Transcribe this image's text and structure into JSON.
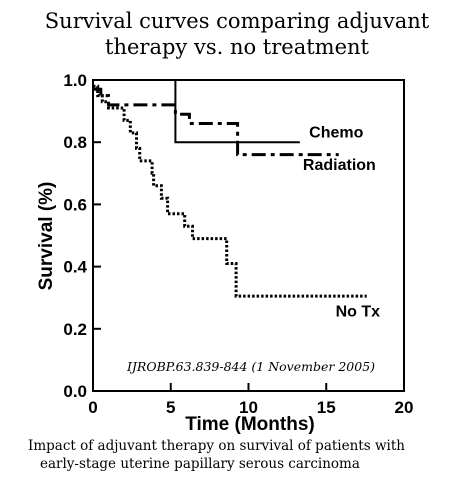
{
  "title_lines": [
    "Survival curves comparing adjuvant",
    "therapy vs. no treatment"
  ],
  "caption_lines": [
    "Impact of adjuvant therapy on survival of patients with",
    "early-stage uterine papillary serous carcinoma"
  ],
  "colors": {
    "line": "#000000",
    "background": "#ffffff"
  },
  "chart_data": {
    "type": "line",
    "title": "Survival curves comparing adjuvant therapy vs. no treatment",
    "xlabel": "Time (Months)",
    "ylabel": "Survival (%)",
    "xlim": [
      0,
      20
    ],
    "ylim": [
      0,
      1
    ],
    "xticks": [
      "0",
      "5",
      "10",
      "15",
      "20"
    ],
    "yticks": [
      "0.0",
      "0.2",
      "0.4",
      "0.6",
      "0.8",
      "1.0"
    ],
    "grid": false,
    "annotation": "IJROBP.63.839-844 (1 November 2005)",
    "series": [
      {
        "name": "Chemo",
        "style": "solid",
        "points": [
          [
            0,
            1.0
          ],
          [
            5.3,
            1.0
          ],
          [
            5.3,
            0.8
          ],
          [
            13.3,
            0.8
          ]
        ]
      },
      {
        "name": "Radiation",
        "style": "dashdot",
        "points": [
          [
            0,
            0.97
          ],
          [
            0.5,
            0.97
          ],
          [
            0.5,
            0.95
          ],
          [
            1.0,
            0.95
          ],
          [
            1.0,
            0.92
          ],
          [
            5.3,
            0.92
          ],
          [
            5.3,
            0.89
          ],
          [
            6.2,
            0.89
          ],
          [
            6.2,
            0.86
          ],
          [
            9.3,
            0.86
          ],
          [
            9.3,
            0.76
          ],
          [
            15.8,
            0.76
          ]
        ]
      },
      {
        "name": "No Tx",
        "style": "dotted",
        "points": [
          [
            0,
            0.98
          ],
          [
            0.3,
            0.98
          ],
          [
            0.3,
            0.95
          ],
          [
            0.6,
            0.95
          ],
          [
            0.6,
            0.93
          ],
          [
            1.0,
            0.93
          ],
          [
            1.0,
            0.91
          ],
          [
            2.0,
            0.91
          ],
          [
            2.0,
            0.87
          ],
          [
            2.4,
            0.87
          ],
          [
            2.4,
            0.83
          ],
          [
            2.8,
            0.83
          ],
          [
            2.8,
            0.78
          ],
          [
            3.0,
            0.78
          ],
          [
            3.0,
            0.74
          ],
          [
            3.8,
            0.74
          ],
          [
            3.8,
            0.7
          ],
          [
            3.9,
            0.7
          ],
          [
            3.9,
            0.66
          ],
          [
            4.4,
            0.66
          ],
          [
            4.4,
            0.62
          ],
          [
            4.8,
            0.62
          ],
          [
            4.8,
            0.57
          ],
          [
            5.9,
            0.57
          ],
          [
            5.9,
            0.53
          ],
          [
            6.4,
            0.53
          ],
          [
            6.4,
            0.49
          ],
          [
            8.6,
            0.49
          ],
          [
            8.6,
            0.41
          ],
          [
            9.2,
            0.41
          ],
          [
            9.2,
            0.305
          ],
          [
            17.6,
            0.305
          ]
        ]
      }
    ],
    "series_labels": [
      {
        "series": "Chemo",
        "text": "Chemo",
        "x": 13.9,
        "y": 0.815
      },
      {
        "series": "Radiation",
        "text": "Radiation",
        "x": 13.5,
        "y": 0.71
      },
      {
        "series": "No Tx",
        "text": "No Tx",
        "x": 15.6,
        "y": 0.24
      }
    ]
  }
}
